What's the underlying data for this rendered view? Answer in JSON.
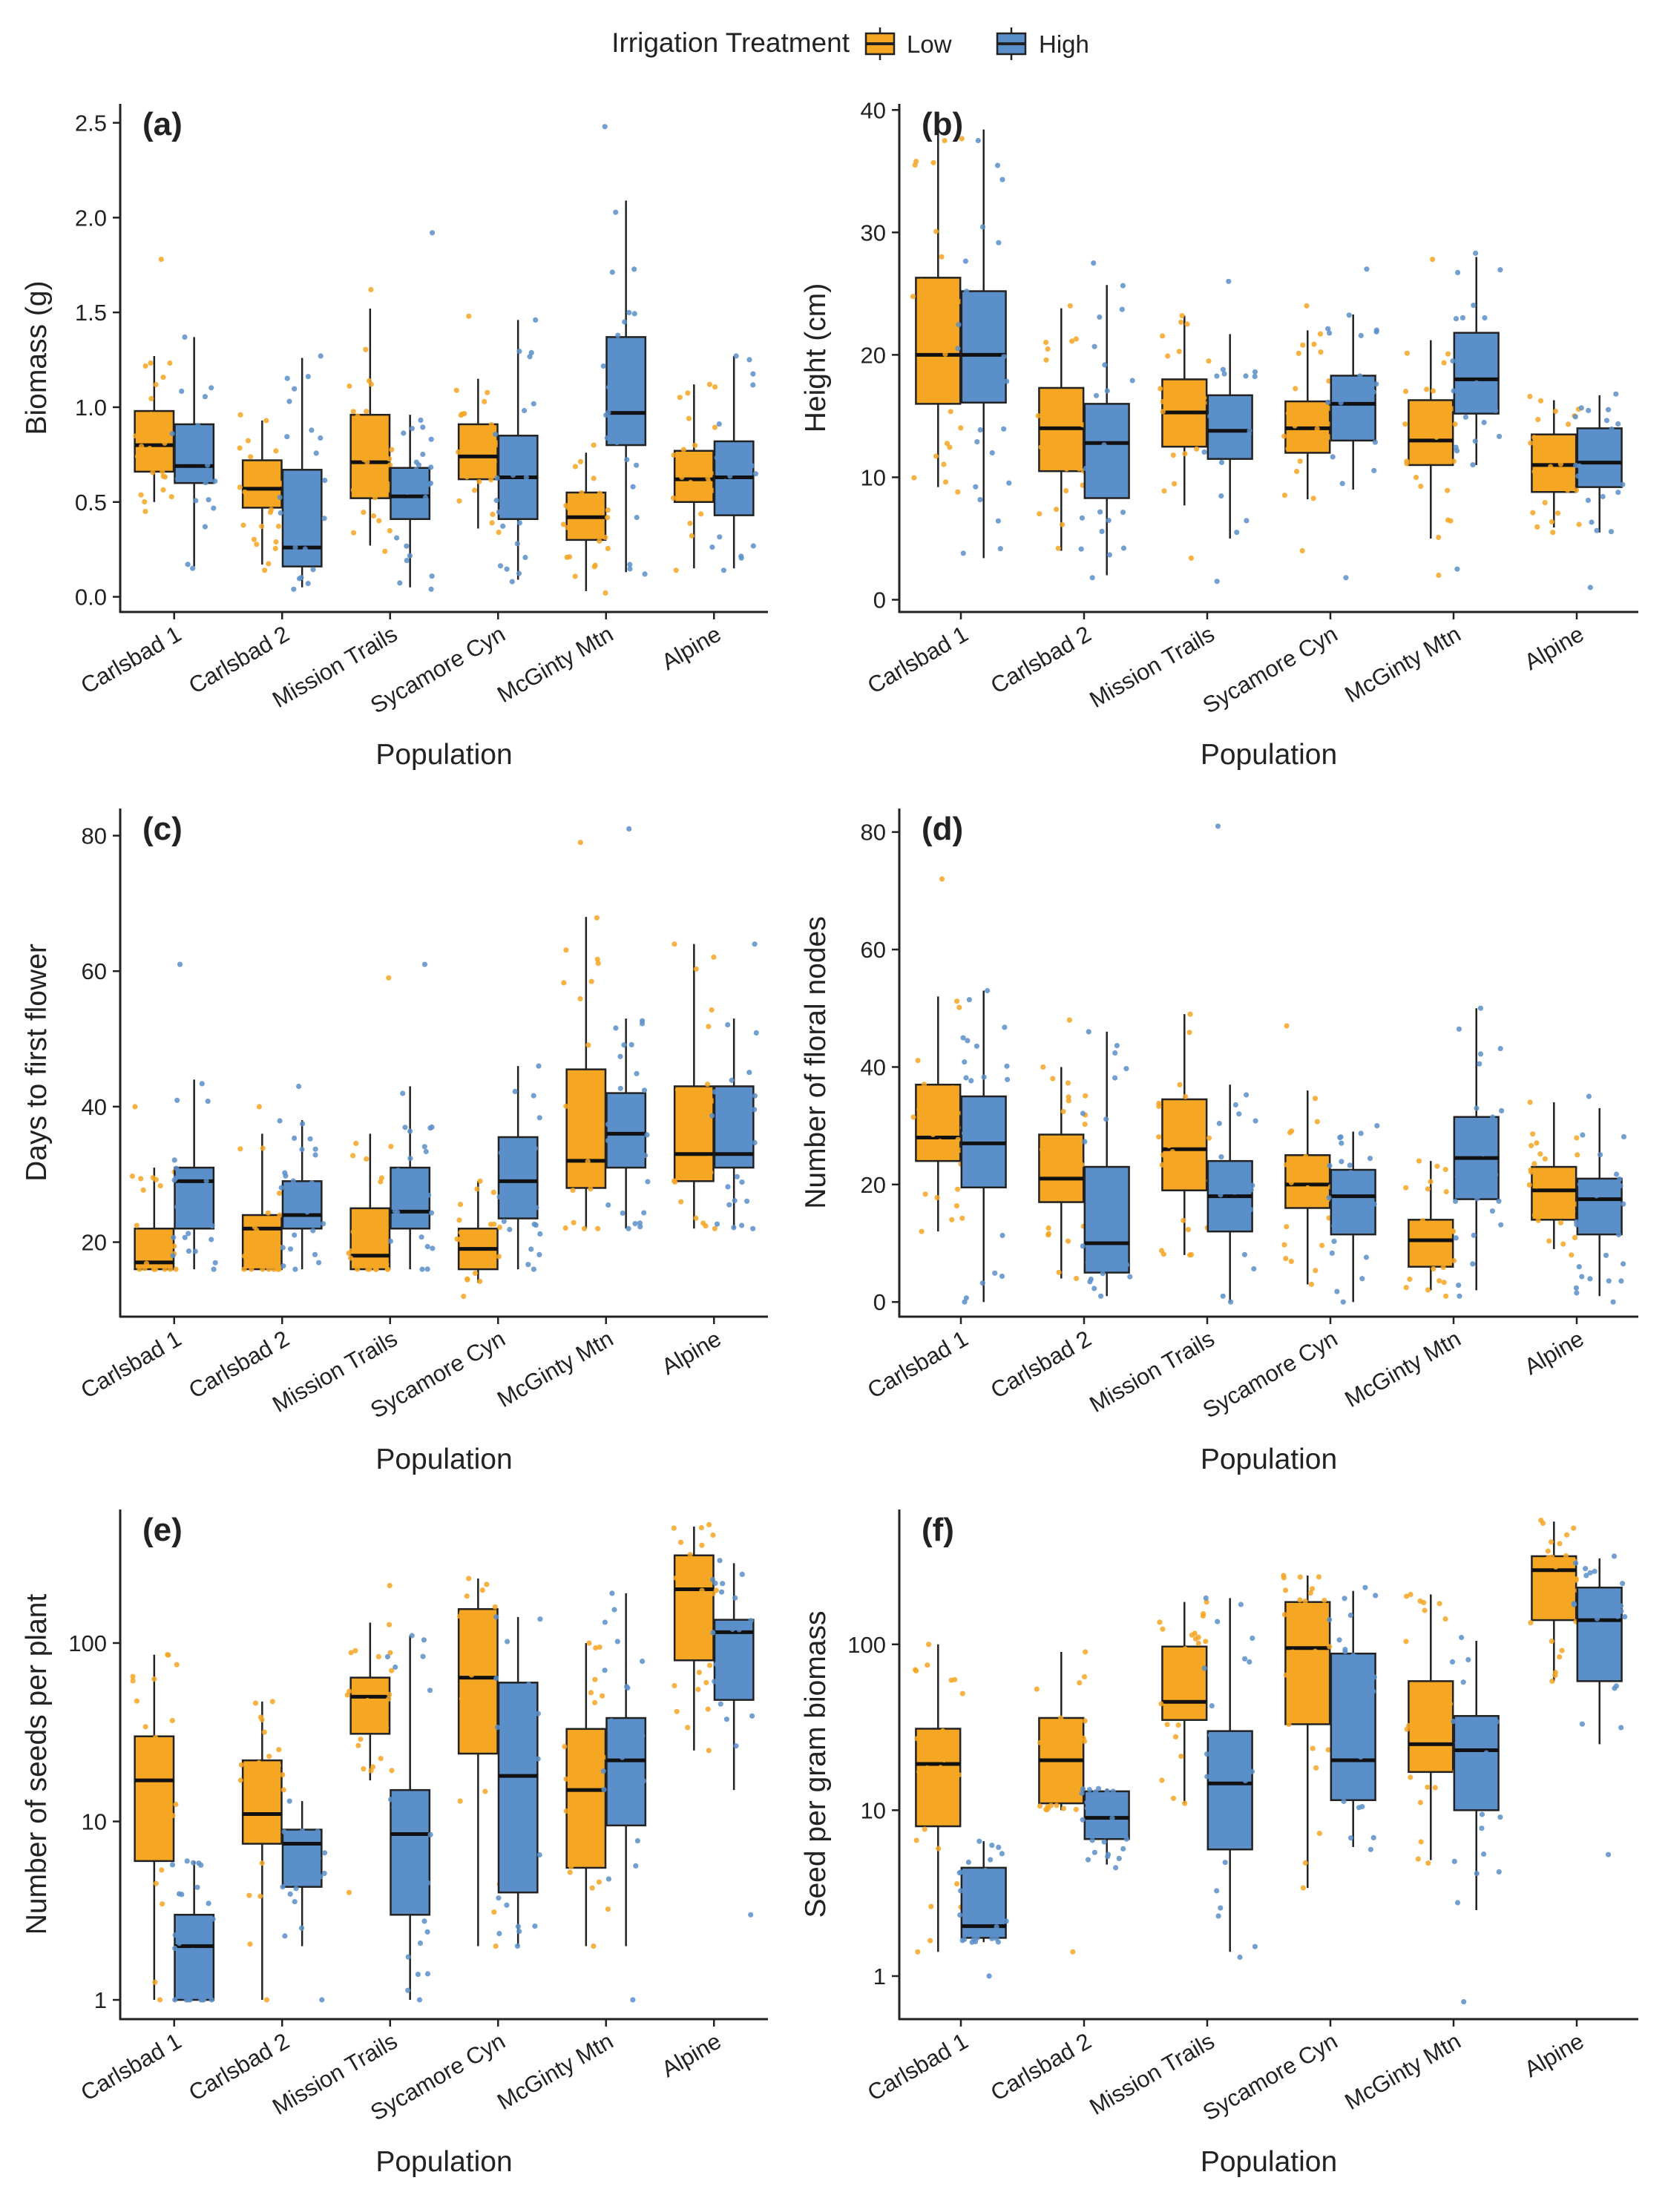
{
  "legend": {
    "title": "Irrigation Treatment",
    "items": [
      {
        "label": "Low",
        "color": "#F5A623"
      },
      {
        "label": "High",
        "color": "#5B8FC9"
      }
    ]
  },
  "chart_data": [
    {
      "panel": "(a)",
      "type": "box",
      "scale": "linear",
      "ylabel": "Biomass (g)",
      "xlabel": "Population",
      "categories": [
        "Carlsbad 1",
        "Carlsbad 2",
        "Mission Trails",
        "Sycamore Cyn",
        "McGinty Mtn",
        "Alpine"
      ],
      "ylim": [
        -0.08,
        2.6
      ],
      "yticks": [
        0,
        0.5,
        1,
        1.5,
        2,
        2.5
      ],
      "ytick_labels": [
        "0.0",
        "0.5",
        "1.0",
        "1.5",
        "2.0",
        "2.5"
      ],
      "series": [
        {
          "name": "Low",
          "boxes": [
            {
              "wlo": 0.5,
              "q1": 0.66,
              "med": 0.8,
              "q3": 0.98,
              "whi": 1.27,
              "pmin": 0.45,
              "pmax": 1.78
            },
            {
              "wlo": 0.17,
              "q1": 0.47,
              "med": 0.57,
              "q3": 0.72,
              "whi": 0.93,
              "pmin": 0.14,
              "pmax": 0.96
            },
            {
              "wlo": 0.27,
              "q1": 0.52,
              "med": 0.71,
              "q3": 0.96,
              "whi": 1.52,
              "pmin": 0.24,
              "pmax": 1.62
            },
            {
              "wlo": 0.36,
              "q1": 0.62,
              "med": 0.74,
              "q3": 0.91,
              "whi": 1.15,
              "pmin": 0.34,
              "pmax": 1.48
            },
            {
              "wlo": 0.03,
              "q1": 0.3,
              "med": 0.42,
              "q3": 0.55,
              "whi": 0.76,
              "pmin": 0.02,
              "pmax": 0.8
            },
            {
              "wlo": 0.15,
              "q1": 0.5,
              "med": 0.62,
              "q3": 0.77,
              "whi": 1.12,
              "pmin": 0.14,
              "pmax": 1.12
            }
          ]
        },
        {
          "name": "High",
          "boxes": [
            {
              "wlo": 0.16,
              "q1": 0.6,
              "med": 0.69,
              "q3": 0.91,
              "whi": 1.37,
              "pmin": 0.15,
              "pmax": 1.37
            },
            {
              "wlo": 0.05,
              "q1": 0.16,
              "med": 0.26,
              "q3": 0.67,
              "whi": 1.26,
              "pmin": 0.04,
              "pmax": 1.27
            },
            {
              "wlo": 0.05,
              "q1": 0.41,
              "med": 0.53,
              "q3": 0.68,
              "whi": 0.96,
              "pmin": 0.04,
              "pmax": 1.92
            },
            {
              "wlo": 0.09,
              "q1": 0.41,
              "med": 0.63,
              "q3": 0.85,
              "whi": 1.46,
              "pmin": 0.08,
              "pmax": 1.46
            },
            {
              "wlo": 0.13,
              "q1": 0.8,
              "med": 0.97,
              "q3": 1.37,
              "whi": 2.09,
              "pmin": 0.12,
              "pmax": 2.48
            },
            {
              "wlo": 0.15,
              "q1": 0.43,
              "med": 0.63,
              "q3": 0.82,
              "whi": 1.27,
              "pmin": 0.14,
              "pmax": 1.27
            }
          ]
        }
      ]
    },
    {
      "panel": "(b)",
      "type": "box",
      "scale": "linear",
      "ylabel": "Height (cm)",
      "xlabel": "Population",
      "categories": [
        "Carlsbad 1",
        "Carlsbad 2",
        "Mission Trails",
        "Sycamore Cyn",
        "McGinty Mtn",
        "Alpine"
      ],
      "ylim": [
        -1,
        40.5
      ],
      "yticks": [
        0,
        10,
        20,
        30,
        40
      ],
      "ytick_labels": [
        "0",
        "10",
        "20",
        "30",
        "40"
      ],
      "series": [
        {
          "name": "Low",
          "boxes": [
            {
              "wlo": 9.2,
              "q1": 16,
              "med": 20,
              "q3": 26.3,
              "whi": 38,
              "pmin": 8.8,
              "pmax": 35.8
            },
            {
              "wlo": 4,
              "q1": 10.5,
              "med": 14,
              "q3": 17.3,
              "whi": 23.8,
              "pmin": 4.2,
              "pmax": 24
            },
            {
              "wlo": 7.7,
              "q1": 12.5,
              "med": 15.3,
              "q3": 18,
              "whi": 23.2,
              "pmin": 3.4,
              "pmax": 23.2
            },
            {
              "wlo": 8.2,
              "q1": 12,
              "med": 14,
              "q3": 16.2,
              "whi": 22,
              "pmin": 4,
              "pmax": 24
            },
            {
              "wlo": 5,
              "q1": 11,
              "med": 13,
              "q3": 16.3,
              "whi": 21.2,
              "pmin": 2,
              "pmax": 27.8
            },
            {
              "wlo": 5.9,
              "q1": 8.8,
              "med": 11,
              "q3": 13.5,
              "whi": 16.3,
              "pmin": 5.5,
              "pmax": 16.6
            }
          ]
        },
        {
          "name": "High",
          "boxes": [
            {
              "wlo": 3.4,
              "q1": 16.1,
              "med": 20,
              "q3": 25.2,
              "whi": 38.4,
              "pmin": 3.8,
              "pmax": 37.5
            },
            {
              "wlo": 2,
              "q1": 8.3,
              "med": 12.8,
              "q3": 16,
              "whi": 25.7,
              "pmin": 1.8,
              "pmax": 27.5
            },
            {
              "wlo": 5,
              "q1": 11.5,
              "med": 13.8,
              "q3": 16.7,
              "whi": 21.7,
              "pmin": 1.5,
              "pmax": 26
            },
            {
              "wlo": 9,
              "q1": 13,
              "med": 16,
              "q3": 18.3,
              "whi": 23.3,
              "pmin": 1.8,
              "pmax": 27
            },
            {
              "wlo": 11,
              "q1": 15.2,
              "med": 18,
              "q3": 21.8,
              "whi": 28,
              "pmin": 2.5,
              "pmax": 28.3
            },
            {
              "wlo": 5.5,
              "q1": 9.2,
              "med": 11.2,
              "q3": 14,
              "whi": 16.7,
              "pmin": 1,
              "pmax": 16.8
            }
          ]
        }
      ]
    },
    {
      "panel": "(c)",
      "type": "box",
      "scale": "linear",
      "ylabel": "Days to first flower",
      "xlabel": "Population",
      "categories": [
        "Carlsbad 1",
        "Carlsbad 2",
        "Mission Trails",
        "Sycamore Cyn",
        "McGinty Mtn",
        "Alpine"
      ],
      "ylim": [
        9,
        84
      ],
      "yticks": [
        20,
        40,
        60,
        80
      ],
      "ytick_labels": [
        "20",
        "40",
        "60",
        "80"
      ],
      "series": [
        {
          "name": "Low",
          "boxes": [
            {
              "wlo": 16,
              "q1": 16,
              "med": 17,
              "q3": 22,
              "whi": 31,
              "pmin": 16,
              "pmax": 40
            },
            {
              "wlo": 16,
              "q1": 16,
              "med": 22,
              "q3": 24,
              "whi": 36,
              "pmin": 16,
              "pmax": 40
            },
            {
              "wlo": 16,
              "q1": 16,
              "med": 18,
              "q3": 25,
              "whi": 36,
              "pmin": 16,
              "pmax": 59
            },
            {
              "wlo": 14,
              "q1": 16,
              "med": 19,
              "q3": 22,
              "whi": 29,
              "pmin": 12,
              "pmax": 29
            },
            {
              "wlo": 22,
              "q1": 28,
              "med": 32,
              "q3": 45.5,
              "whi": 68,
              "pmin": 22,
              "pmax": 79
            },
            {
              "wlo": 22,
              "q1": 29,
              "med": 33,
              "q3": 43,
              "whi": 64,
              "pmin": 22,
              "pmax": 64
            }
          ]
        },
        {
          "name": "High",
          "boxes": [
            {
              "wlo": 16,
              "q1": 22,
              "med": 29,
              "q3": 31,
              "whi": 44,
              "pmin": 16,
              "pmax": 61
            },
            {
              "wlo": 16,
              "q1": 22,
              "med": 24,
              "q3": 29,
              "whi": 38,
              "pmin": 16,
              "pmax": 43
            },
            {
              "wlo": 16,
              "q1": 22,
              "med": 24.5,
              "q3": 31,
              "whi": 43,
              "pmin": 16,
              "pmax": 61
            },
            {
              "wlo": 16,
              "q1": 23.5,
              "med": 29,
              "q3": 35.5,
              "whi": 46,
              "pmin": 16,
              "pmax": 46
            },
            {
              "wlo": 22,
              "q1": 31,
              "med": 36,
              "q3": 42,
              "whi": 53,
              "pmin": 22,
              "pmax": 81
            },
            {
              "wlo": 22,
              "q1": 31,
              "med": 33,
              "q3": 43,
              "whi": 53,
              "pmin": 22,
              "pmax": 64
            }
          ]
        }
      ]
    },
    {
      "panel": "(d)",
      "type": "box",
      "scale": "linear",
      "ylabel": "Number of floral nodes",
      "xlabel": "Population",
      "categories": [
        "Carlsbad 1",
        "Carlsbad 2",
        "Mission Trails",
        "Sycamore Cyn",
        "McGinty Mtn",
        "Alpine"
      ],
      "ylim": [
        -2.5,
        84
      ],
      "yticks": [
        0,
        20,
        40,
        60,
        80
      ],
      "ytick_labels": [
        "0",
        "20",
        "40",
        "60",
        "80"
      ],
      "series": [
        {
          "name": "Low",
          "boxes": [
            {
              "wlo": 12,
              "q1": 24,
              "med": 28,
              "q3": 37,
              "whi": 52,
              "pmin": 12,
              "pmax": 72
            },
            {
              "wlo": 4,
              "q1": 17,
              "med": 21,
              "q3": 28.5,
              "whi": 40,
              "pmin": 4,
              "pmax": 48
            },
            {
              "wlo": 8,
              "q1": 19,
              "med": 26,
              "q3": 34.5,
              "whi": 49,
              "pmin": 8,
              "pmax": 49
            },
            {
              "wlo": 3,
              "q1": 16,
              "med": 20,
              "q3": 25,
              "whi": 36,
              "pmin": 3,
              "pmax": 47
            },
            {
              "wlo": 2,
              "q1": 6,
              "med": 10.5,
              "q3": 14,
              "whi": 24,
              "pmin": 1,
              "pmax": 24
            },
            {
              "wlo": 9,
              "q1": 14,
              "med": 19,
              "q3": 23,
              "whi": 34,
              "pmin": 8,
              "pmax": 34
            }
          ]
        },
        {
          "name": "High",
          "boxes": [
            {
              "wlo": 0,
              "q1": 19.5,
              "med": 27,
              "q3": 35,
              "whi": 53,
              "pmin": 0,
              "pmax": 53
            },
            {
              "wlo": 1,
              "q1": 5,
              "med": 10,
              "q3": 23,
              "whi": 46,
              "pmin": 1,
              "pmax": 46
            },
            {
              "wlo": 0,
              "q1": 12,
              "med": 18,
              "q3": 24,
              "whi": 37,
              "pmin": 0,
              "pmax": 81
            },
            {
              "wlo": 0,
              "q1": 11.5,
              "med": 18,
              "q3": 22.5,
              "whi": 29,
              "pmin": 0,
              "pmax": 30
            },
            {
              "wlo": 2,
              "q1": 17.5,
              "med": 24.5,
              "q3": 31.5,
              "whi": 50,
              "pmin": 1,
              "pmax": 50
            },
            {
              "wlo": 1,
              "q1": 11.5,
              "med": 17.5,
              "q3": 21,
              "whi": 33,
              "pmin": 0,
              "pmax": 35
            }
          ]
        }
      ]
    },
    {
      "panel": "(e)",
      "type": "box",
      "scale": "log",
      "ylabel": "Number of seeds per plant",
      "xlabel": "Population",
      "categories": [
        "Carlsbad 1",
        "Carlsbad 2",
        "Mission Trails",
        "Sycamore Cyn",
        "McGinty Mtn",
        "Alpine"
      ],
      "ylim": [
        0.78,
        560
      ],
      "yticks": [
        1,
        10,
        100
      ],
      "ytick_labels": [
        "1",
        "10",
        "100"
      ],
      "series": [
        {
          "name": "Low",
          "boxes": [
            {
              "wlo": 1,
              "q1": 6,
              "med": 17,
              "q3": 30,
              "whi": 86,
              "pmin": 1,
              "pmax": 86
            },
            {
              "wlo": 1,
              "q1": 7.5,
              "med": 11,
              "q3": 22,
              "whi": 47,
              "pmin": 1,
              "pmax": 47
            },
            {
              "wlo": 17,
              "q1": 31,
              "med": 50,
              "q3": 64,
              "whi": 130,
              "pmin": 4,
              "pmax": 210
            },
            {
              "wlo": 2,
              "q1": 24,
              "med": 64,
              "q3": 155,
              "whi": 230,
              "pmin": 2,
              "pmax": 230
            },
            {
              "wlo": 2,
              "q1": 5.5,
              "med": 15,
              "q3": 33,
              "whi": 100,
              "pmin": 2,
              "pmax": 100
            },
            {
              "wlo": 25,
              "q1": 80,
              "med": 200,
              "q3": 310,
              "whi": 450,
              "pmin": 25,
              "pmax": 460
            }
          ]
        },
        {
          "name": "High",
          "boxes": [
            {
              "wlo": 1,
              "q1": 1,
              "med": 2,
              "q3": 3,
              "whi": 6,
              "pmin": 1,
              "pmax": 6
            },
            {
              "wlo": 2,
              "q1": 4.3,
              "med": 7.5,
              "q3": 9,
              "whi": 13,
              "pmin": 1,
              "pmax": 13
            },
            {
              "wlo": 1,
              "q1": 3,
              "med": 8.5,
              "q3": 15,
              "whi": 110,
              "pmin": 1,
              "pmax": 110
            },
            {
              "wlo": 2,
              "q1": 4,
              "med": 18,
              "q3": 60,
              "whi": 140,
              "pmin": 2,
              "pmax": 140
            },
            {
              "wlo": 2,
              "q1": 9.5,
              "med": 22,
              "q3": 38,
              "whi": 190,
              "pmin": 1,
              "pmax": 190
            },
            {
              "wlo": 15,
              "q1": 48,
              "med": 115,
              "q3": 135,
              "whi": 280,
              "pmin": 3,
              "pmax": 290
            }
          ]
        }
      ]
    },
    {
      "panel": "(f)",
      "type": "box",
      "scale": "log",
      "ylabel": "Seed per gram biomass",
      "xlabel": "Population",
      "categories": [
        "Carlsbad 1",
        "Carlsbad 2",
        "Mission Trails",
        "Sycamore Cyn",
        "McGinty Mtn",
        "Alpine"
      ],
      "ylim": [
        0.55,
        650
      ],
      "yticks": [
        1,
        10,
        100
      ],
      "ytick_labels": [
        "1",
        "10",
        "100"
      ],
      "series": [
        {
          "name": "Low",
          "boxes": [
            {
              "wlo": 1.4,
              "q1": 8,
              "med": 19,
              "q3": 31,
              "whi": 100,
              "pmin": 1.4,
              "pmax": 100
            },
            {
              "wlo": 10,
              "q1": 11,
              "med": 20,
              "q3": 36,
              "whi": 90,
              "pmin": 1.4,
              "pmax": 90
            },
            {
              "wlo": 11,
              "q1": 35,
              "med": 45,
              "q3": 97,
              "whi": 180,
              "pmin": 11,
              "pmax": 180
            },
            {
              "wlo": 3.4,
              "q1": 33,
              "med": 95,
              "q3": 180,
              "whi": 260,
              "pmin": 3.4,
              "pmax": 260
            },
            {
              "wlo": 5,
              "q1": 17,
              "med": 25,
              "q3": 60,
              "whi": 200,
              "pmin": 4.8,
              "pmax": 200
            },
            {
              "wlo": 60,
              "q1": 140,
              "med": 280,
              "q3": 340,
              "whi": 550,
              "pmin": 60,
              "pmax": 560
            }
          ]
        },
        {
          "name": "High",
          "boxes": [
            {
              "wlo": 1.6,
              "q1": 1.7,
              "med": 2,
              "q3": 4.5,
              "whi": 6.5,
              "pmin": 1,
              "pmax": 6.5
            },
            {
              "wlo": 4.7,
              "q1": 6.7,
              "med": 9,
              "q3": 13,
              "whi": 13.5,
              "pmin": 4.5,
              "pmax": 13.5
            },
            {
              "wlo": 1.4,
              "q1": 5.8,
              "med": 14.5,
              "q3": 30,
              "whi": 190,
              "pmin": 1.3,
              "pmax": 190
            },
            {
              "wlo": 6,
              "q1": 11.5,
              "med": 20,
              "q3": 88,
              "whi": 210,
              "pmin": 5.8,
              "pmax": 220
            },
            {
              "wlo": 2.5,
              "q1": 10,
              "med": 23,
              "q3": 37,
              "whi": 105,
              "pmin": 0.7,
              "pmax": 110
            },
            {
              "wlo": 25,
              "q1": 60,
              "med": 140,
              "q3": 220,
              "whi": 330,
              "pmin": 5.4,
              "pmax": 340
            }
          ]
        }
      ]
    }
  ]
}
